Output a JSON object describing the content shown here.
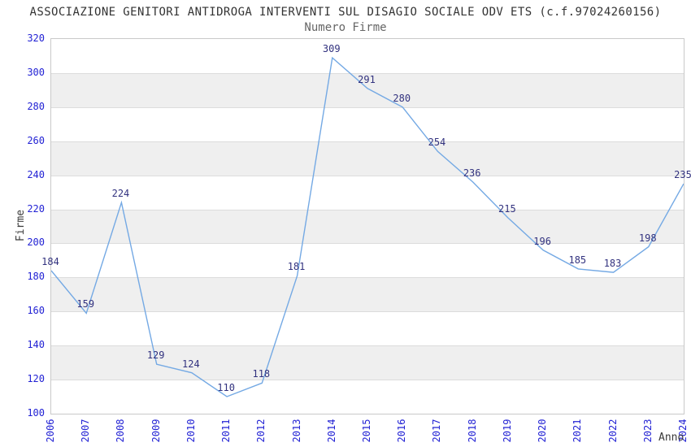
{
  "header": {
    "title": "ASSOCIAZIONE GENITORI ANTIDROGA INTERVENTI SUL DISAGIO SOCIALE ODV ETS (c.f.97024260156)",
    "subtitle": "Numero Firme"
  },
  "chart_data": {
    "type": "line",
    "title": "Numero Firme",
    "xlabel": "Anno",
    "ylabel": "Firme",
    "categories": [
      "2006",
      "2007",
      "2008",
      "2009",
      "2010",
      "2011",
      "2012",
      "2013",
      "2014",
      "2015",
      "2016",
      "2017",
      "2018",
      "2019",
      "2020",
      "2021",
      "2022",
      "2023",
      "2024"
    ],
    "values": [
      184,
      159,
      224,
      129,
      124,
      110,
      118,
      181,
      309,
      291,
      280,
      254,
      236,
      215,
      196,
      185,
      183,
      198,
      235
    ],
    "ylim": [
      100,
      320
    ],
    "ytick_step": 20,
    "grid": "horizontal-bands",
    "legend": "none",
    "data_labels": true,
    "colors": {
      "line": "#74a9e4",
      "tick_label": "#2222d4",
      "data_label": "#32327f",
      "band": "#efefef",
      "gridline": "#dcdcdc",
      "border": "#c9c9c9",
      "title": "#333333",
      "subtitle": "#666666",
      "axis_label": "#3a3a3a",
      "background": "#ffffff"
    }
  }
}
